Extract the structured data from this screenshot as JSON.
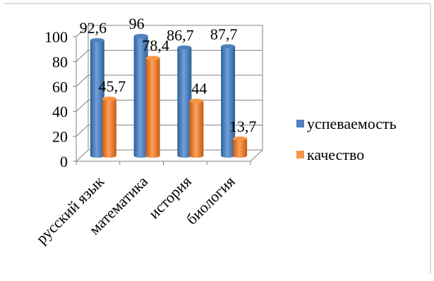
{
  "chart_data": {
    "type": "bar",
    "categories": [
      "русский язык",
      "математика",
      "история",
      "биология"
    ],
    "series": [
      {
        "name": "успеваемость",
        "values": [
          92.6,
          96,
          86.7,
          87.7
        ],
        "labels": [
          "92,6",
          "96",
          "86,7",
          "87,7"
        ],
        "color": "#4F81BD"
      },
      {
        "name": "качество",
        "values": [
          45.7,
          78.4,
          44,
          13.7
        ],
        "labels": [
          "45,7",
          "78,4",
          "44",
          "13,7"
        ],
        "color": "#F79646"
      }
    ],
    "yticks": [
      "0",
      "20",
      "40",
      "60",
      "80",
      "100"
    ],
    "ylim": [
      0,
      100
    ],
    "grid": true,
    "legend": "right"
  }
}
